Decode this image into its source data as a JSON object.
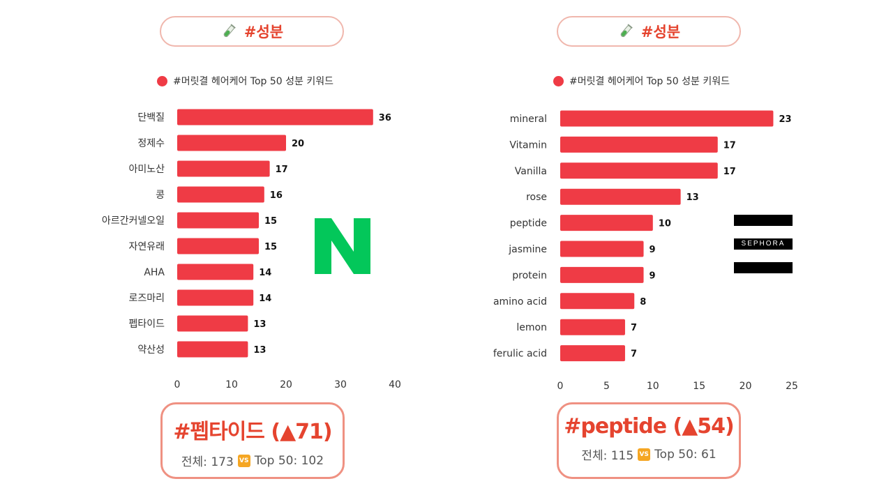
{
  "panels": [
    {
      "header": {
        "label": "#성분",
        "icon": "test-tube-icon"
      },
      "legend": "#머릿결 헤어케어 Top 50 성분 키워드",
      "result": {
        "title": "#펩타이드 (▲71)",
        "total_label": "전체: 173",
        "vs_icon": "vs-icon",
        "top_label": "Top 50: 102"
      }
    },
    {
      "header": {
        "label": "#성분",
        "icon": "test-tube-icon"
      },
      "legend": "#머릿결 헤어케어 Top 50 성분 키워드",
      "result": {
        "title": "#peptide (▲54)",
        "total_label": "전체: 115",
        "vs_icon": "vs-icon",
        "top_label": "Top 50: 61"
      }
    }
  ],
  "logos": {
    "naver": "N",
    "sephora": "SEPHORA"
  },
  "colors": {
    "bar": "#ef3b45",
    "accent": "#e5442f",
    "border": "#ef9182"
  },
  "chart_data": [
    {
      "type": "bar",
      "orientation": "horizontal",
      "series_name": "#머릿결 헤어케어 Top 50 성분 키워드",
      "categories": [
        "단백질",
        "정제수",
        "아미노산",
        "콩",
        "아르간커넬오일",
        "자연유래",
        "AHA",
        "로즈마리",
        "펩타이드",
        "약산성"
      ],
      "values": [
        36,
        20,
        17,
        16,
        15,
        15,
        14,
        14,
        13,
        13
      ],
      "xlim": [
        0,
        40
      ],
      "xticks": [
        0,
        10,
        20,
        30,
        40
      ],
      "grid": false
    },
    {
      "type": "bar",
      "orientation": "horizontal",
      "series_name": "#머릿결 헤어케어 Top 50 성분 키워드",
      "categories": [
        "mineral",
        "Vitamin",
        "Vanilla",
        "rose",
        "peptide",
        "jasmine",
        "protein",
        "amino acid",
        "lemon",
        "ferulic acid"
      ],
      "values": [
        23,
        17,
        17,
        13,
        10,
        9,
        9,
        8,
        7,
        7
      ],
      "xlim": [
        0,
        25
      ],
      "xticks": [
        0,
        5,
        10,
        15,
        20,
        25
      ],
      "grid": false
    }
  ]
}
